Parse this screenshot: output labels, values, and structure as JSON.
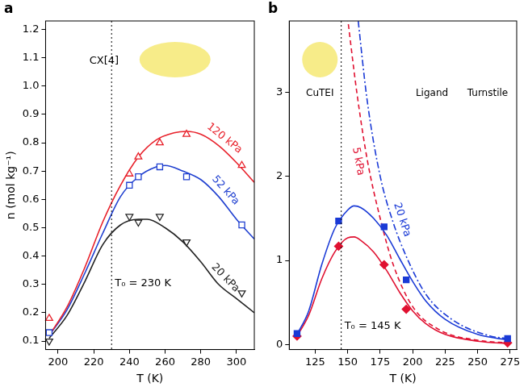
{
  "chart_data": [
    {
      "panel": "a",
      "type": "scatter",
      "xlabel": "T (K)",
      "ylabel": "n (mol kg⁻¹)",
      "xlim": [
        193,
        310
      ],
      "xticks": [
        200,
        220,
        240,
        260,
        280,
        300
      ],
      "ylim": [
        0.07,
        1.23
      ],
      "yticks": [
        0.1,
        0.2,
        0.3,
        0.4,
        0.5,
        0.6,
        0.7,
        0.8,
        0.9,
        {
          "value": 1,
          "label": "1.0"
        },
        1.1,
        1.2
      ],
      "grid": false,
      "inset_labels": [
        "CX[4]"
      ],
      "vlines": [
        {
          "x": 230,
          "label": "T₀ = 230 K",
          "line_style": "dotted"
        }
      ],
      "series": [
        {
          "name": "120 kPa",
          "color": "#e8202a",
          "marker": "triangle_up_open",
          "x": [
            195,
            240,
            245,
            257,
            272,
            303
          ],
          "values": [
            0.18,
            0.69,
            0.75,
            0.8,
            0.83,
            0.72
          ],
          "curves": [
            {
              "line_style": "solid",
              "x": [
                195,
                205,
                215,
                225,
                235,
                245,
                255,
                265,
                272,
                280,
                290,
                300,
                310
              ],
              "values": [
                0.12,
                0.22,
                0.36,
                0.52,
                0.65,
                0.75,
                0.81,
                0.835,
                0.84,
                0.83,
                0.79,
                0.73,
                0.66
              ]
            }
          ]
        },
        {
          "name": "52 kPa",
          "color": "#2040d0",
          "marker": "square_open",
          "x": [
            195,
            240,
            245,
            257,
            272,
            303
          ],
          "values": [
            0.13,
            0.65,
            0.68,
            0.715,
            0.68,
            0.51
          ],
          "curves": [
            {
              "line_style": "solid",
              "x": [
                195,
                205,
                215,
                225,
                235,
                245,
                255,
                260,
                270,
                280,
                290,
                300,
                310
              ],
              "values": [
                0.12,
                0.21,
                0.34,
                0.48,
                0.61,
                0.68,
                0.715,
                0.72,
                0.7,
                0.67,
                0.61,
                0.53,
                0.46
              ]
            }
          ]
        },
        {
          "name": "20 kPa",
          "color": "#222222",
          "marker": "triangle_down_open",
          "x": [
            195,
            240,
            245,
            257,
            272,
            303
          ],
          "values": [
            0.1,
            0.54,
            0.52,
            0.54,
            0.45,
            0.27
          ],
          "curves": [
            {
              "line_style": "solid",
              "x": [
                195,
                205,
                215,
                225,
                235,
                245,
                250,
                260,
                270,
                280,
                290,
                300,
                310
              ],
              "values": [
                0.11,
                0.19,
                0.31,
                0.44,
                0.51,
                0.53,
                0.53,
                0.5,
                0.45,
                0.38,
                0.3,
                0.25,
                0.2
              ]
            }
          ]
        }
      ]
    },
    {
      "panel": "b",
      "type": "scatter",
      "xlabel": "T (K)",
      "xlim": [
        105,
        280
      ],
      "xticks": [
        125,
        150,
        175,
        200,
        225,
        250,
        275
      ],
      "ylim": [
        -0.06,
        3.85
      ],
      "yticks": [
        0,
        1,
        2,
        3
      ],
      "grid": false,
      "inset_labels": [
        "CuTEI",
        "Ligand",
        "Turnstile"
      ],
      "vlines": [
        {
          "x": 145,
          "label": "T₀ = 145 K",
          "line_style": "dotted"
        }
      ],
      "series": [
        {
          "name": "20 kPa",
          "color": "#1a3ad6",
          "marker": "square",
          "x": [
            111,
            143,
            178,
            195,
            273
          ],
          "values": [
            0.13,
            1.47,
            1.4,
            0.77,
            0.07
          ],
          "curves": [
            {
              "line_style": "solid",
              "x": [
                111,
                120,
                130,
                140,
                150,
                155,
                160,
                170,
                180,
                190,
                200,
                210,
                225,
                250,
                275
              ],
              "values": [
                0.12,
                0.4,
                0.95,
                1.38,
                1.6,
                1.65,
                1.63,
                1.5,
                1.3,
                1.02,
                0.75,
                0.52,
                0.3,
                0.12,
                0.05
              ]
            },
            {
              "line_style": "dashdot",
              "x": [
                157,
                165,
                175,
                185,
                195,
                210,
                230,
                260,
                275
              ],
              "values": [
                4.0,
                2.9,
                2.0,
                1.45,
                1.05,
                0.6,
                0.3,
                0.1,
                0.07
              ]
            }
          ]
        },
        {
          "name": "5 kPa",
          "color": "#e01030",
          "marker": "diamond",
          "x": [
            111,
            143,
            178,
            195,
            273
          ],
          "values": [
            0.1,
            1.17,
            0.95,
            0.42,
            0.02
          ],
          "curves": [
            {
              "line_style": "solid",
              "x": [
                111,
                120,
                130,
                140,
                150,
                155,
                160,
                170,
                180,
                190,
                200,
                210,
                225,
                250,
                275
              ],
              "values": [
                0.1,
                0.35,
                0.78,
                1.1,
                1.27,
                1.28,
                1.24,
                1.1,
                0.88,
                0.62,
                0.4,
                0.25,
                0.12,
                0.04,
                0.01
              ]
            },
            {
              "line_style": "dashed",
              "x": [
                149,
                157,
                165,
                175,
                185,
                200,
                220,
                250,
                275
              ],
              "values": [
                4.0,
                3.0,
                2.2,
                1.5,
                0.95,
                0.45,
                0.18,
                0.05,
                0.02
              ]
            }
          ]
        }
      ]
    }
  ]
}
